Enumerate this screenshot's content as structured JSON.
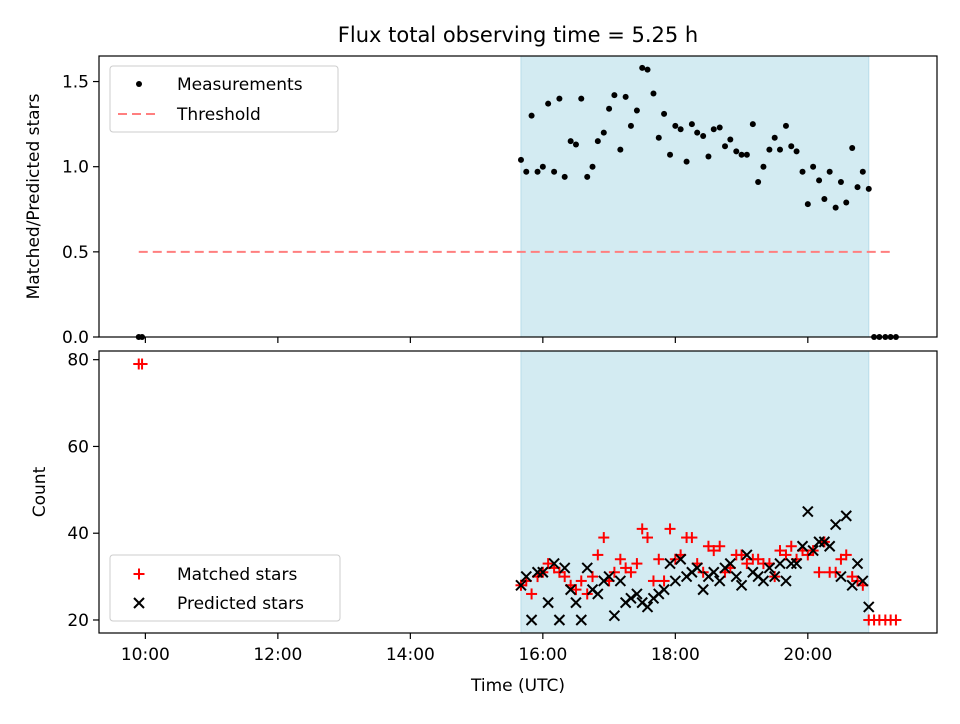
{
  "title": "Flux total observing time = 5.25 h",
  "colors": {
    "band": "#d3ebf2",
    "band_edge": "#b8dde9",
    "threshold": "#ff7f7f",
    "matched": "#ff0000",
    "predicted": "#000000",
    "measurement": "#000000"
  },
  "chart_data": [
    {
      "type": "scatter",
      "ylabel": "Matched/Predicted stars",
      "xlim": [
        9.3,
        21.95
      ],
      "ylim": [
        0,
        1.65
      ],
      "yticks": [
        0.0,
        0.5,
        1.0,
        1.5
      ],
      "ytick_labels": [
        "0.0",
        "0.5",
        "1.0",
        "1.5"
      ],
      "shaded_span": [
        15.67,
        20.92
      ],
      "legend": {
        "position": "upper-left",
        "measurements": "Measurements",
        "threshold": "Threshold"
      },
      "threshold": {
        "value": 0.5,
        "x_range": [
          9.9,
          21.3
        ]
      },
      "series": [
        {
          "name": "Measurements",
          "x": [
            9.9,
            9.95,
            15.67,
            15.75,
            15.83,
            15.92,
            16.0,
            16.08,
            16.17,
            16.25,
            16.33,
            16.42,
            16.5,
            16.58,
            16.67,
            16.75,
            16.83,
            16.92,
            17.0,
            17.08,
            17.17,
            17.25,
            17.33,
            17.42,
            17.5,
            17.58,
            17.67,
            17.75,
            17.83,
            17.92,
            18.0,
            18.08,
            18.17,
            18.25,
            18.33,
            18.42,
            18.5,
            18.58,
            18.67,
            18.75,
            18.83,
            18.92,
            19.0,
            19.08,
            19.17,
            19.25,
            19.33,
            19.42,
            19.5,
            19.58,
            19.67,
            19.75,
            19.83,
            19.92,
            20.0,
            20.08,
            20.17,
            20.25,
            20.33,
            20.42,
            20.5,
            20.58,
            20.67,
            20.75,
            20.83,
            20.92,
            21.0,
            21.08,
            21.17,
            21.25,
            21.33
          ],
          "y": [
            0.0,
            0.0,
            1.04,
            0.97,
            1.3,
            0.97,
            1.0,
            1.37,
            0.97,
            1.4,
            0.94,
            1.15,
            1.13,
            1.4,
            0.94,
            1.0,
            1.15,
            1.2,
            1.34,
            1.42,
            1.1,
            1.41,
            1.24,
            1.33,
            1.58,
            1.57,
            1.43,
            1.17,
            1.31,
            1.07,
            1.24,
            1.22,
            1.03,
            1.25,
            1.2,
            1.18,
            1.06,
            1.22,
            1.23,
            1.12,
            1.16,
            1.09,
            1.07,
            1.07,
            1.25,
            0.91,
            1.0,
            1.1,
            1.17,
            1.1,
            1.24,
            1.12,
            1.09,
            0.97,
            0.78,
            1.0,
            0.92,
            0.81,
            0.97,
            0.76,
            0.91,
            0.79,
            1.11,
            0.88,
            0.97,
            0.87,
            0.0,
            0.0,
            0.0,
            0.0,
            0.0
          ]
        }
      ]
    },
    {
      "type": "scatter",
      "xlabel": "Time (UTC)",
      "ylabel": "Count",
      "xlim": [
        9.3,
        21.95
      ],
      "ylim": [
        17,
        82
      ],
      "yticks": [
        20,
        40,
        60,
        80
      ],
      "ytick_labels": [
        "20",
        "40",
        "60",
        "80"
      ],
      "xticks": [
        10,
        12,
        14,
        16,
        18,
        20
      ],
      "xtick_labels": [
        "10:00",
        "12:00",
        "14:00",
        "16:00",
        "18:00",
        "20:00"
      ],
      "shaded_span": [
        15.67,
        20.92
      ],
      "legend": {
        "position": "lower-left"
      },
      "series": [
        {
          "name": "Matched stars",
          "x": [
            9.9,
            9.95,
            15.67,
            15.75,
            15.83,
            15.92,
            16.0,
            16.08,
            16.17,
            16.25,
            16.33,
            16.42,
            16.5,
            16.58,
            16.67,
            16.75,
            16.83,
            16.92,
            17.0,
            17.08,
            17.17,
            17.25,
            17.33,
            17.42,
            17.5,
            17.58,
            17.67,
            17.75,
            17.83,
            17.92,
            18.0,
            18.08,
            18.17,
            18.25,
            18.33,
            18.42,
            18.5,
            18.58,
            18.67,
            18.75,
            18.83,
            18.92,
            19.0,
            19.08,
            19.17,
            19.25,
            19.33,
            19.42,
            19.5,
            19.58,
            19.67,
            19.75,
            19.83,
            19.92,
            20.0,
            20.08,
            20.17,
            20.25,
            20.33,
            20.42,
            20.5,
            20.58,
            20.67,
            20.75,
            20.83,
            20.92,
            21.0,
            21.08,
            21.17,
            21.25,
            21.33
          ],
          "y": [
            79,
            79,
            28,
            29,
            26,
            30,
            31,
            33,
            32,
            31,
            30,
            28,
            27,
            29,
            26,
            30,
            35,
            39,
            29,
            31,
            34,
            32,
            31,
            33,
            41,
            39,
            29,
            34,
            29,
            41,
            34,
            35,
            39,
            39,
            33,
            31,
            37,
            36,
            37,
            31,
            32,
            35,
            35,
            33,
            34,
            34,
            33,
            33,
            30,
            36,
            35,
            37,
            34,
            36,
            35,
            36,
            31,
            38,
            31,
            31,
            34,
            35,
            30,
            29,
            28,
            20,
            20,
            20,
            20,
            20,
            20
          ]
        },
        {
          "name": "Predicted stars",
          "x": [
            15.67,
            15.75,
            15.83,
            15.92,
            16.0,
            16.08,
            16.17,
            16.25,
            16.33,
            16.42,
            16.5,
            16.58,
            16.67,
            16.75,
            16.83,
            16.92,
            17.0,
            17.08,
            17.17,
            17.25,
            17.33,
            17.42,
            17.5,
            17.58,
            17.67,
            17.75,
            17.83,
            17.92,
            18.0,
            18.08,
            18.17,
            18.25,
            18.33,
            18.42,
            18.5,
            18.58,
            18.67,
            18.75,
            18.83,
            18.92,
            19.0,
            19.08,
            19.17,
            19.25,
            19.33,
            19.42,
            19.5,
            19.58,
            19.67,
            19.75,
            19.83,
            19.92,
            20.0,
            20.08,
            20.17,
            20.25,
            20.33,
            20.42,
            20.5,
            20.58,
            20.67,
            20.75,
            20.83,
            20.92
          ],
          "y": [
            28,
            30,
            20,
            31,
            31,
            24,
            33,
            20,
            32,
            27,
            24,
            20,
            32,
            27,
            26,
            29,
            30,
            21,
            29,
            24,
            25,
            26,
            24,
            23,
            25,
            26,
            27,
            33,
            29,
            34,
            30,
            31,
            32,
            27,
            30,
            31,
            29,
            32,
            33,
            30,
            28,
            35,
            31,
            30,
            29,
            32,
            30,
            33,
            29,
            33,
            33,
            37,
            45,
            36,
            38,
            38,
            37,
            42,
            30,
            44,
            28,
            33,
            29,
            23
          ]
        }
      ]
    }
  ]
}
